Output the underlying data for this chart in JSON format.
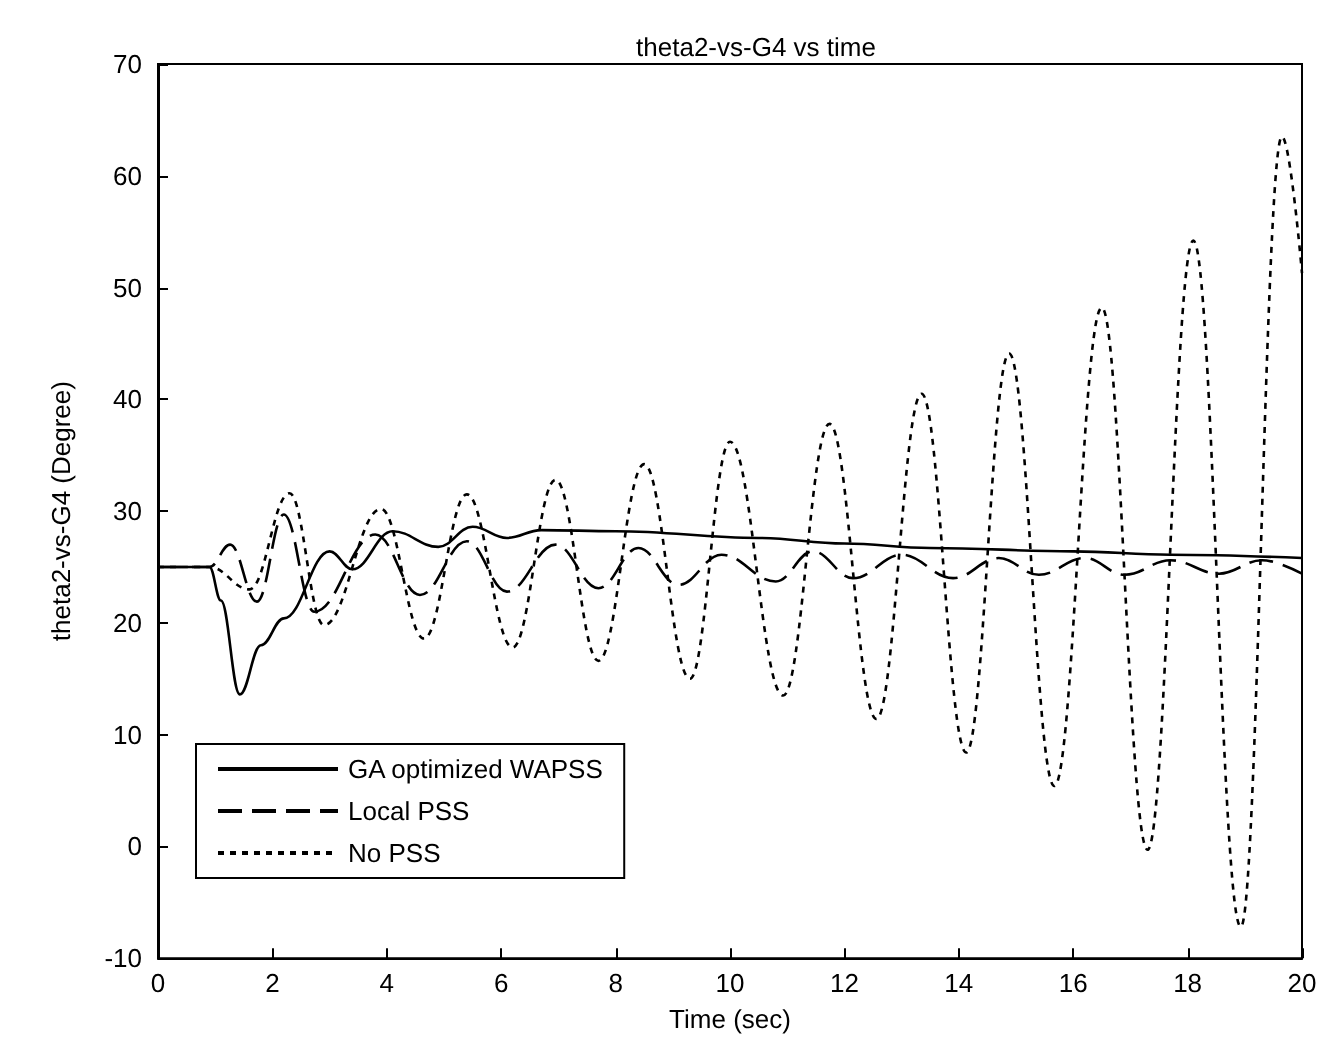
{
  "chart_data": {
    "type": "line",
    "title": "theta2-vs-G4 vs time",
    "xlabel": "Time (sec)",
    "ylabel": "theta2-vs-G4 (Degree)",
    "xlim": [
      0,
      20
    ],
    "xticks": [
      0,
      2,
      4,
      6,
      8,
      10,
      12,
      14,
      16,
      18,
      20
    ],
    "ylim": [
      -10,
      70
    ],
    "yticks": [
      -10,
      0,
      10,
      20,
      30,
      40,
      50,
      60,
      70
    ],
    "grid": false,
    "legend": "bottom left",
    "marker": "none",
    "series": [
      {
        "name": "GA optimized WAPSS",
        "color": "#000000",
        "line_style": "solid",
        "x": [
          0,
          0.9,
          1.1,
          1.43,
          1.8,
          2.2,
          3.0,
          3.4,
          4.1,
          4.9,
          5.5,
          6.1,
          6.7,
          8.0,
          10.5,
          12,
          13.5,
          16,
          17.7,
          20
        ],
        "values": [
          25,
          25,
          22,
          13.6,
          18,
          20.4,
          26.4,
          24.8,
          28.2,
          26.8,
          28.6,
          27.6,
          28.3,
          28.2,
          27.6,
          27.1,
          26.7,
          26.4,
          26.1,
          25.8
        ]
      },
      {
        "name": "Local PSS",
        "color": "#000000",
        "line_style": "dashed",
        "x": [
          0,
          0.9,
          1.26,
          1.73,
          2.2,
          2.73,
          3.8,
          4.58,
          5.4,
          6.1,
          6.95,
          7.7,
          8.4,
          9.1,
          9.85,
          10.8,
          11.45,
          12.15,
          13.0,
          13.9,
          14.7,
          15.4,
          16.2,
          16.9,
          17.7,
          18.55,
          19.3,
          20
        ],
        "values": [
          25,
          25,
          27,
          21.9,
          29.7,
          21,
          27.9,
          22.5,
          27.3,
          22.8,
          27,
          23.1,
          26.7,
          23.4,
          26.1,
          23.7,
          26.4,
          24,
          26.1,
          24,
          25.8,
          24.3,
          25.8,
          24.3,
          25.6,
          24.4,
          25.6,
          24.4
        ]
      },
      {
        "name": "No PSS",
        "color": "#000000",
        "line_style": "dotted",
        "x": [
          0,
          0.9,
          1.6,
          2.3,
          2.9,
          3.9,
          4.65,
          5.4,
          6.2,
          6.95,
          7.7,
          8.5,
          9.3,
          10.0,
          10.93,
          11.74,
          12.56,
          13.35,
          14.13,
          14.88,
          15.67,
          16.5,
          17.3,
          18.1,
          18.93,
          19.65,
          20
        ],
        "values": [
          25,
          25,
          23,
          31.6,
          19.8,
          30.2,
          18.6,
          31.5,
          17.8,
          32.8,
          16.6,
          34.2,
          15,
          36.2,
          13.5,
          37.8,
          11.4,
          40.5,
          8.4,
          44.1,
          5.4,
          48.2,
          -0.3,
          54.2,
          -7.2,
          63.5,
          51.3
        ]
      }
    ]
  }
}
